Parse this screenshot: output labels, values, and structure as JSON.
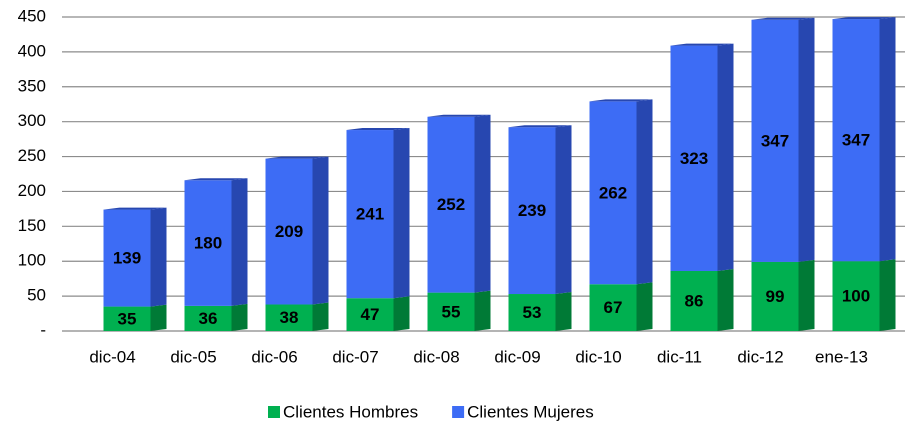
{
  "chart_data": {
    "type": "stacked_bar",
    "categories": [
      "dic-04",
      "dic-05",
      "dic-06",
      "dic-07",
      "dic-08",
      "dic-09",
      "dic-10",
      "dic-11",
      "dic-12",
      "ene-13"
    ],
    "series": [
      {
        "name": "Clientes Hombres",
        "color": "#00b050",
        "side_color": "#007a36",
        "values": [
          35,
          36,
          38,
          47,
          55,
          53,
          67,
          86,
          99,
          100
        ]
      },
      {
        "name": "Clientes Mujeres",
        "color": "#3d6cf5",
        "side_color": "#2747b0",
        "values": [
          139,
          180,
          209,
          241,
          252,
          239,
          262,
          323,
          347,
          347
        ]
      }
    ],
    "ylim": [
      0,
      450
    ],
    "yticks": [
      {
        "value": 0,
        "label": "-"
      },
      50,
      100,
      150,
      200,
      250,
      300,
      350,
      400,
      450
    ],
    "grid": true,
    "legend": "bottom"
  }
}
